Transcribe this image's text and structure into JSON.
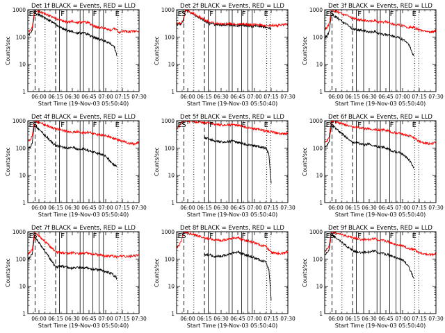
{
  "figure": {
    "ylabel": "Counts/sec",
    "xlabel_prefix": "Start Time (19-Nov-03 05:50:40)",
    "x_ticks": [
      "06:00",
      "06:15",
      "06:30",
      "06:45",
      "07:00",
      "07:15",
      "07:30"
    ],
    "y_ticks": [
      "1",
      "10",
      "100",
      "1000"
    ],
    "flag_labels": [
      "E",
      "S",
      "F",
      "F",
      "E"
    ]
  },
  "chart_data": [
    {
      "type": "line",
      "title": "Det 1f BLACK = Events, RED = LLD",
      "xlabel": "Start Time (19-Nov-03 05:50:40)",
      "ylabel": "Counts/sec",
      "yscale": "log",
      "ylim": [
        1,
        1000
      ],
      "xlim": [
        "05:50",
        "07:30"
      ],
      "series": [
        {
          "name": "Events",
          "color": "#000000",
          "x": [
            "05:50",
            "05:52",
            "05:54",
            "05:56",
            "06:15",
            "06:18",
            "06:22",
            "06:26",
            "06:30",
            "06:35",
            "06:40",
            "06:45",
            "06:48",
            "06:52",
            "06:56",
            "07:00",
            "07:04",
            "07:08",
            "07:10"
          ],
          "y": [
            120,
            130,
            180,
            800,
            300,
            230,
            200,
            170,
            160,
            140,
            140,
            120,
            100,
            90,
            80,
            70,
            60,
            40,
            20
          ]
        },
        {
          "name": "LLD",
          "color": "#ff0000",
          "x": [
            "05:50",
            "05:52",
            "05:54",
            "05:56",
            "06:15",
            "06:18",
            "06:22",
            "06:26",
            "06:30",
            "06:35",
            "06:40",
            "06:45",
            "06:48",
            "06:52",
            "06:56",
            "07:00",
            "07:04",
            "07:08",
            "07:12",
            "07:16",
            "07:20",
            "07:25",
            "07:30"
          ],
          "y": [
            160,
            170,
            230,
            1000,
            480,
            420,
            380,
            350,
            380,
            340,
            350,
            330,
            260,
            230,
            220,
            210,
            180,
            200,
            150,
            170,
            160,
            160,
            170
          ]
        }
      ]
    },
    {
      "type": "line",
      "title": "Det 2f BLACK = Events, RED = LLD",
      "xlabel": "Start Time (19-Nov-03 05:50:40)",
      "ylabel": "Counts/sec",
      "yscale": "log",
      "ylim": [
        1,
        1000
      ],
      "xlim": [
        "05:50",
        "07:30"
      ],
      "series": [
        {
          "name": "Events",
          "color": "#000000",
          "x": [
            "05:50",
            "05:54",
            "05:56",
            "05:58",
            "06:15",
            "06:20",
            "06:30",
            "06:40",
            "06:50",
            "07:00",
            "07:10",
            "07:15"
          ],
          "y": [
            280,
            300,
            400,
            1000,
            400,
            300,
            280,
            270,
            260,
            250,
            240,
            200
          ]
        },
        {
          "name": "LLD",
          "color": "#ff0000",
          "x": [
            "05:50",
            "05:54",
            "05:56",
            "05:58",
            "06:15",
            "06:20",
            "06:30",
            "06:40",
            "06:50",
            "07:00",
            "07:10",
            "07:20",
            "07:25",
            "07:30"
          ],
          "y": [
            300,
            320,
            420,
            1000,
            430,
            330,
            310,
            300,
            290,
            280,
            270,
            260,
            280,
            300
          ]
        }
      ]
    },
    {
      "type": "line",
      "title": "Det 3f BLACK = Events, RED = LLD",
      "xlabel": "Start Time (19-Nov-03 05:50:40)",
      "ylabel": "Counts/sec",
      "yscale": "log",
      "ylim": [
        1,
        1000
      ],
      "xlim": [
        "05:50",
        "07:30"
      ],
      "series": [
        {
          "name": "Events",
          "color": "#000000",
          "x": [
            "05:50",
            "05:52",
            "05:54",
            "05:56",
            "06:15",
            "06:20",
            "06:25",
            "06:30",
            "06:35",
            "06:40",
            "06:45",
            "06:50",
            "06:55",
            "07:00",
            "07:05",
            "07:10"
          ],
          "y": [
            100,
            110,
            150,
            700,
            200,
            180,
            170,
            150,
            160,
            130,
            120,
            110,
            100,
            80,
            60,
            20
          ]
        },
        {
          "name": "LLD",
          "color": "#ff0000",
          "x": [
            "05:50",
            "05:52",
            "05:54",
            "05:56",
            "06:15",
            "06:20",
            "06:25",
            "06:30",
            "06:35",
            "06:40",
            "06:45",
            "06:50",
            "06:55",
            "07:00",
            "07:05",
            "07:10",
            "07:15",
            "07:20",
            "07:25",
            "07:30"
          ],
          "y": [
            200,
            220,
            300,
            1000,
            500,
            430,
            400,
            380,
            400,
            350,
            360,
            300,
            280,
            260,
            220,
            230,
            180,
            160,
            150,
            170
          ]
        }
      ]
    },
    {
      "type": "line",
      "title": "Det 4f BLACK = Events, RED = LLD",
      "xlabel": "Start Time (19-Nov-03 05:50:40)",
      "ylabel": "Counts/sec",
      "yscale": "log",
      "ylim": [
        1,
        1000
      ],
      "xlim": [
        "05:50",
        "07:30"
      ],
      "series": [
        {
          "name": "Events",
          "color": "#000000",
          "x": [
            "05:50",
            "05:52",
            "05:54",
            "05:56",
            "06:15",
            "06:20",
            "06:25",
            "06:30",
            "06:35",
            "06:40",
            "06:45",
            "06:50",
            "06:55",
            "07:00",
            "07:05",
            "07:10"
          ],
          "y": [
            100,
            110,
            150,
            700,
            120,
            110,
            100,
            110,
            90,
            95,
            80,
            70,
            60,
            50,
            30,
            20
          ]
        },
        {
          "name": "LLD",
          "color": "#ff0000",
          "x": [
            "05:50",
            "05:52",
            "05:54",
            "05:56",
            "06:15",
            "06:20",
            "06:25",
            "06:30",
            "06:35",
            "06:40",
            "06:45",
            "06:50",
            "06:55",
            "07:00",
            "07:05",
            "07:10",
            "07:15",
            "07:20",
            "07:25",
            "07:30"
          ],
          "y": [
            180,
            200,
            280,
            1000,
            500,
            450,
            420,
            380,
            400,
            360,
            380,
            330,
            300,
            280,
            250,
            200,
            180,
            150,
            140,
            160
          ]
        }
      ]
    },
    {
      "type": "line",
      "title": "Det 5f BLACK = Events, RED = LLD",
      "xlabel": "Start Time (19-Nov-03 05:50:40)",
      "ylabel": "Counts/sec",
      "yscale": "log",
      "ylim": [
        1,
        1000
      ],
      "xlim": [
        "05:50",
        "07:30"
      ],
      "series": [
        {
          "name": "Events",
          "color": "#000000",
          "x": [
            "06:15",
            "06:20",
            "06:25",
            "06:30",
            "06:35",
            "06:40",
            "06:45",
            "06:50",
            "06:55",
            "07:00",
            "07:05",
            "07:10",
            "07:13",
            "07:15"
          ],
          "y": [
            250,
            200,
            180,
            170,
            170,
            180,
            160,
            140,
            130,
            120,
            110,
            100,
            60,
            5
          ]
        },
        {
          "name": "LLD",
          "color": "#ff0000",
          "x": [
            "05:50",
            "05:52",
            "05:54",
            "05:56",
            "06:15",
            "06:20",
            "06:25",
            "06:30",
            "06:35",
            "06:40",
            "06:45",
            "06:50",
            "06:55",
            "07:00",
            "07:05",
            "07:10",
            "07:15",
            "07:20",
            "07:25",
            "07:30"
          ],
          "y": [
            500,
            600,
            800,
            1000,
            850,
            800,
            750,
            700,
            720,
            700,
            680,
            600,
            550,
            500,
            480,
            420,
            400,
            350,
            330,
            350
          ]
        }
      ]
    },
    {
      "type": "line",
      "title": "Det 6f BLACK = Events, RED = LLD",
      "xlabel": "Start Time (19-Nov-03 05:50:40)",
      "ylabel": "Counts/sec",
      "yscale": "log",
      "ylim": [
        1,
        1000
      ],
      "xlim": [
        "05:50",
        "07:30"
      ],
      "series": [
        {
          "name": "Events",
          "color": "#000000",
          "x": [
            "05:50",
            "05:52",
            "05:54",
            "05:56",
            "06:15",
            "06:20",
            "06:25",
            "06:30",
            "06:35",
            "06:40",
            "06:45",
            "06:50",
            "06:55",
            "07:00",
            "07:05",
            "07:10"
          ],
          "y": [
            100,
            120,
            170,
            700,
            160,
            150,
            130,
            140,
            120,
            110,
            100,
            80,
            70,
            60,
            40,
            20
          ]
        },
        {
          "name": "LLD",
          "color": "#ff0000",
          "x": [
            "05:50",
            "05:52",
            "05:54",
            "05:56",
            "06:15",
            "06:20",
            "06:25",
            "06:30",
            "06:35",
            "06:40",
            "06:45",
            "06:50",
            "06:55",
            "07:00",
            "07:05",
            "07:10",
            "07:15",
            "07:20",
            "07:25",
            "07:30"
          ],
          "y": [
            150,
            180,
            250,
            1000,
            600,
            550,
            520,
            500,
            480,
            460,
            450,
            380,
            350,
            320,
            280,
            250,
            170,
            150,
            140,
            160
          ]
        }
      ]
    },
    {
      "type": "line",
      "title": "Det 7f BLACK = Events, RED = LLD",
      "xlabel": "Start Time (19-Nov-03 05:50:40)",
      "ylabel": "Counts/sec",
      "yscale": "log",
      "ylim": [
        1,
        1000
      ],
      "xlim": [
        "05:50",
        "07:30"
      ],
      "series": [
        {
          "name": "Events",
          "color": "#000000",
          "x": [
            "05:50",
            "05:52",
            "05:54",
            "05:56",
            "06:15",
            "06:20",
            "06:25",
            "06:30",
            "06:35",
            "06:40",
            "06:45",
            "06:50",
            "06:55",
            "07:00",
            "07:05",
            "07:10"
          ],
          "y": [
            100,
            110,
            160,
            700,
            50,
            55,
            50,
            45,
            50,
            48,
            45,
            42,
            40,
            35,
            30,
            20
          ]
        },
        {
          "name": "LLD",
          "color": "#ff0000",
          "x": [
            "05:50",
            "05:52",
            "05:54",
            "05:56",
            "06:15",
            "06:20",
            "06:25",
            "06:30",
            "06:35",
            "06:40",
            "06:45",
            "06:50",
            "06:55",
            "07:00",
            "07:05",
            "07:10",
            "07:15",
            "07:20",
            "07:25",
            "07:30"
          ],
          "y": [
            150,
            170,
            230,
            1000,
            180,
            170,
            160,
            170,
            160,
            165,
            160,
            150,
            140,
            130,
            130,
            120,
            130,
            120,
            130,
            140
          ]
        }
      ]
    },
    {
      "type": "line",
      "title": "Det 8f BLACK = Events, RED = LLD",
      "xlabel": "Start Time (19-Nov-03 05:50:40)",
      "ylabel": "Counts/sec",
      "yscale": "log",
      "ylim": [
        1,
        1000
      ],
      "xlim": [
        "05:50",
        "07:30"
      ],
      "series": [
        {
          "name": "Events",
          "color": "#000000",
          "x": [
            "06:15",
            "06:20",
            "06:25",
            "06:30",
            "06:35",
            "06:40",
            "06:45",
            "06:50",
            "06:55",
            "07:00",
            "07:05",
            "07:10",
            "07:13",
            "07:15"
          ],
          "y": [
            150,
            140,
            120,
            130,
            140,
            160,
            180,
            150,
            130,
            110,
            90,
            80,
            40,
            3
          ]
        },
        {
          "name": "LLD",
          "color": "#ff0000",
          "x": [
            "05:50",
            "05:52",
            "05:54",
            "05:56",
            "06:15",
            "06:20",
            "06:25",
            "06:30",
            "06:35",
            "06:40",
            "06:45",
            "06:50",
            "06:55",
            "07:00",
            "07:05",
            "07:10",
            "07:15",
            "07:20",
            "07:25",
            "07:30"
          ],
          "y": [
            250,
            300,
            450,
            1000,
            600,
            550,
            500,
            480,
            520,
            560,
            600,
            500,
            450,
            400,
            320,
            300,
            170,
            160,
            160,
            180
          ]
        }
      ]
    },
    {
      "type": "line",
      "title": "Det 9f BLACK = Events, RED = LLD",
      "xlabel": "Start Time (19-Nov-03 05:50:40)",
      "ylabel": "Counts/sec",
      "yscale": "log",
      "ylim": [
        1,
        1000
      ],
      "xlim": [
        "05:50",
        "07:30"
      ],
      "series": [
        {
          "name": "Events",
          "color": "#000000",
          "x": [
            "05:50",
            "05:52",
            "05:54",
            "05:56",
            "06:15",
            "06:20",
            "06:25",
            "06:30",
            "06:35",
            "06:40",
            "06:45",
            "06:50",
            "06:55",
            "07:00",
            "07:05",
            "07:10"
          ],
          "y": [
            150,
            170,
            230,
            800,
            200,
            180,
            170,
            180,
            200,
            160,
            150,
            130,
            110,
            90,
            60,
            20
          ]
        },
        {
          "name": "LLD",
          "color": "#ff0000",
          "x": [
            "05:50",
            "05:52",
            "05:54",
            "05:56",
            "06:15",
            "06:20",
            "06:25",
            "06:30",
            "06:35",
            "06:40",
            "06:45",
            "06:50",
            "06:55",
            "07:00",
            "07:05",
            "07:10",
            "07:15",
            "07:20",
            "07:25",
            "07:30"
          ],
          "y": [
            200,
            230,
            320,
            1000,
            600,
            550,
            500,
            520,
            560,
            480,
            460,
            380,
            330,
            300,
            250,
            230,
            170,
            150,
            140,
            160
          ]
        }
      ]
    }
  ],
  "markers": {
    "dashed": [
      "05:56:30",
      "06:15:00"
    ],
    "solid": [
      "06:18:30",
      "06:25:00",
      "06:37:00",
      "06:40:00",
      "06:48:30",
      "06:54:00",
      "06:58:00"
    ],
    "dotted": [
      "06:05:30",
      "07:11:00",
      "07:14:30"
    ],
    "labels": [
      {
        "text": "E",
        "t": "05:51:00"
      },
      {
        "text": "S",
        "t": "05:54:30"
      },
      {
        "text": "F",
        "t": "06:19:30"
      },
      {
        "text": "F",
        "t": "06:48:30"
      },
      {
        "text": "E",
        "t": "07:08:30"
      }
    ]
  }
}
